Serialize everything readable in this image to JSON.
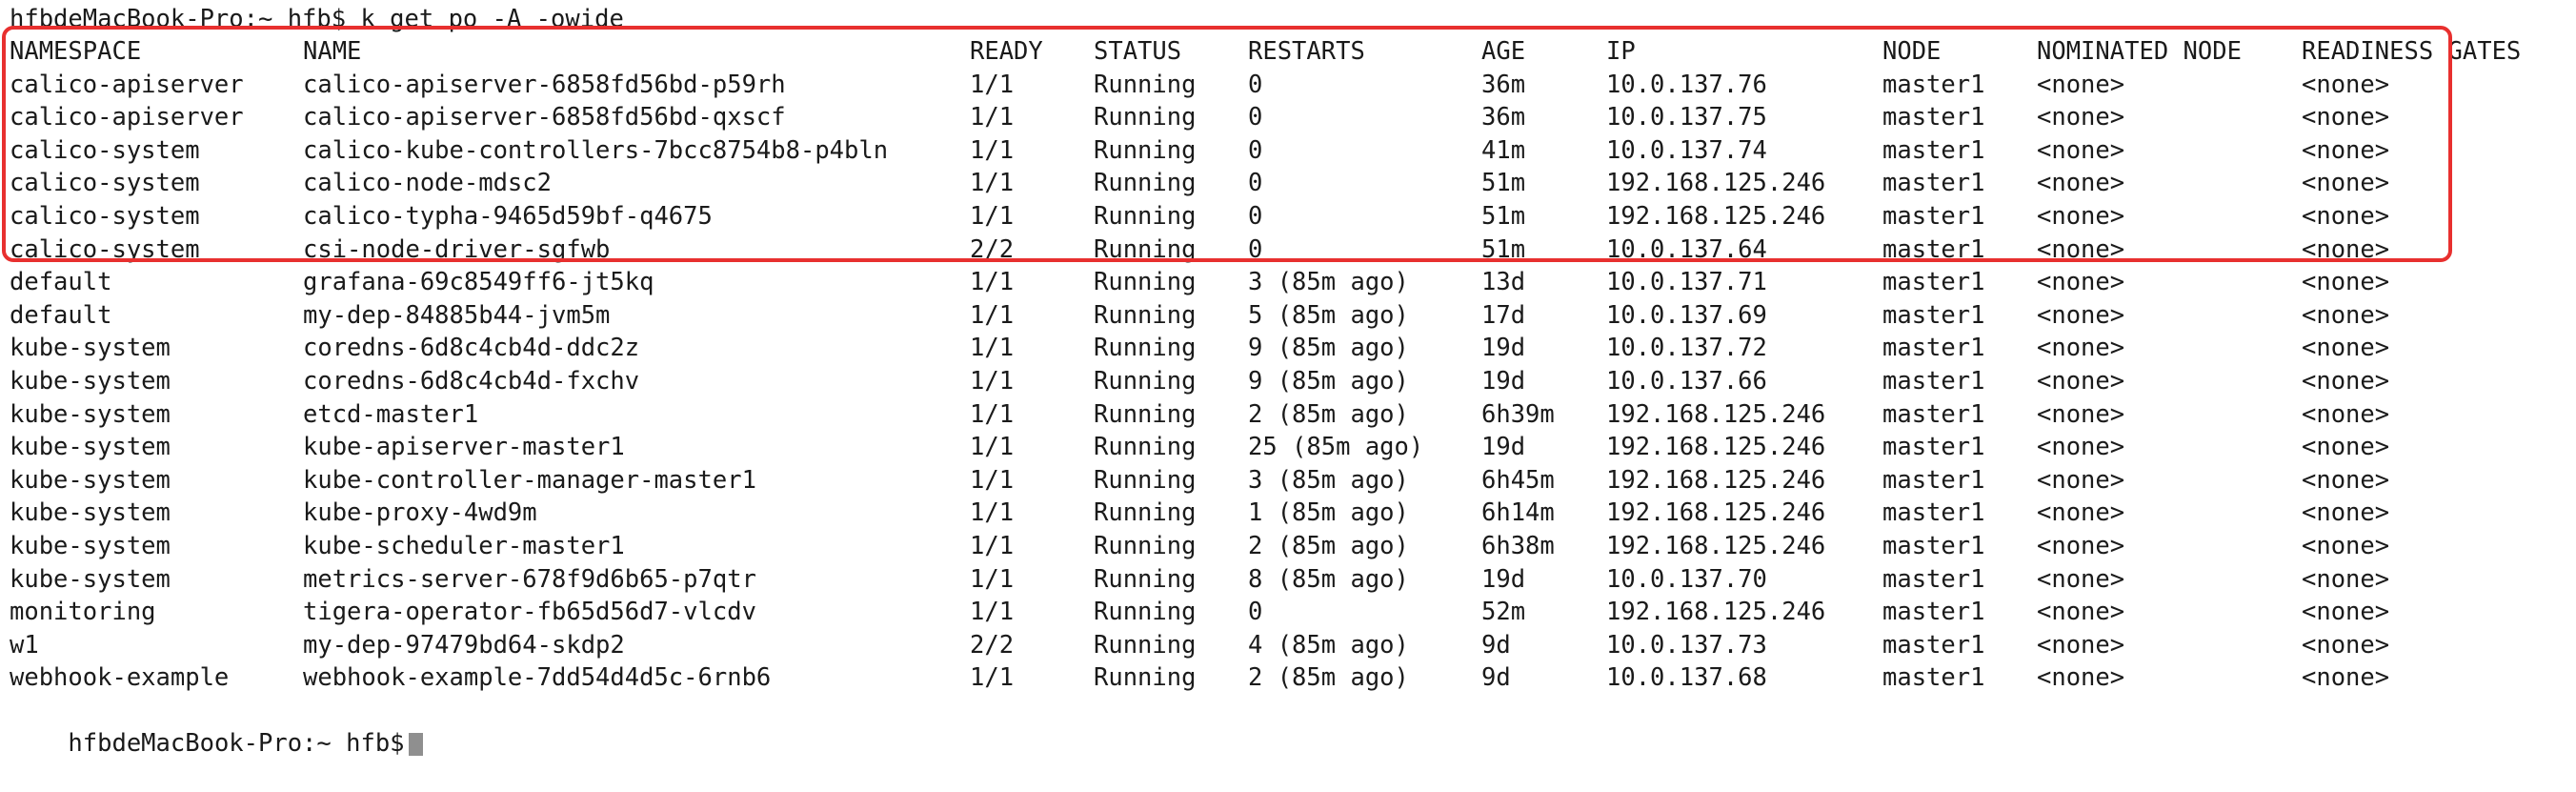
{
  "terminal": {
    "command_line": "hfbdeMacBook-Pro:~ hfb$ k get po -A -owide",
    "bottom_prompt": "hfbdeMacBook-Pro:~ hfb$",
    "highlight_color": "#e8302f",
    "headers": [
      "NAMESPACE",
      "NAME",
      "READY",
      "STATUS",
      "RESTARTS",
      "AGE",
      "IP",
      "NODE",
      "NOMINATED NODE",
      "READINESS GATES"
    ],
    "rows": [
      [
        "calico-apiserver",
        "calico-apiserver-6858fd56bd-p59rh",
        "1/1",
        "Running",
        "0",
        "36m",
        "10.0.137.76",
        "master1",
        "<none>",
        "<none>"
      ],
      [
        "calico-apiserver",
        "calico-apiserver-6858fd56bd-qxscf",
        "1/1",
        "Running",
        "0",
        "36m",
        "10.0.137.75",
        "master1",
        "<none>",
        "<none>"
      ],
      [
        "calico-system",
        "calico-kube-controllers-7bcc8754b8-p4bln",
        "1/1",
        "Running",
        "0",
        "41m",
        "10.0.137.74",
        "master1",
        "<none>",
        "<none>"
      ],
      [
        "calico-system",
        "calico-node-mdsc2",
        "1/1",
        "Running",
        "0",
        "51m",
        "192.168.125.246",
        "master1",
        "<none>",
        "<none>"
      ],
      [
        "calico-system",
        "calico-typha-9465d59bf-q4675",
        "1/1",
        "Running",
        "0",
        "51m",
        "192.168.125.246",
        "master1",
        "<none>",
        "<none>"
      ],
      [
        "calico-system",
        "csi-node-driver-sgfwb",
        "2/2",
        "Running",
        "0",
        "51m",
        "10.0.137.64",
        "master1",
        "<none>",
        "<none>"
      ],
      [
        "default",
        "grafana-69c8549ff6-jt5kq",
        "1/1",
        "Running",
        "3 (85m ago)",
        "13d",
        "10.0.137.71",
        "master1",
        "<none>",
        "<none>"
      ],
      [
        "default",
        "my-dep-84885b44-jvm5m",
        "1/1",
        "Running",
        "5 (85m ago)",
        "17d",
        "10.0.137.69",
        "master1",
        "<none>",
        "<none>"
      ],
      [
        "kube-system",
        "coredns-6d8c4cb4d-ddc2z",
        "1/1",
        "Running",
        "9 (85m ago)",
        "19d",
        "10.0.137.72",
        "master1",
        "<none>",
        "<none>"
      ],
      [
        "kube-system",
        "coredns-6d8c4cb4d-fxchv",
        "1/1",
        "Running",
        "9 (85m ago)",
        "19d",
        "10.0.137.66",
        "master1",
        "<none>",
        "<none>"
      ],
      [
        "kube-system",
        "etcd-master1",
        "1/1",
        "Running",
        "2 (85m ago)",
        "6h39m",
        "192.168.125.246",
        "master1",
        "<none>",
        "<none>"
      ],
      [
        "kube-system",
        "kube-apiserver-master1",
        "1/1",
        "Running",
        "25 (85m ago)",
        "19d",
        "192.168.125.246",
        "master1",
        "<none>",
        "<none>"
      ],
      [
        "kube-system",
        "kube-controller-manager-master1",
        "1/1",
        "Running",
        "3 (85m ago)",
        "6h45m",
        "192.168.125.246",
        "master1",
        "<none>",
        "<none>"
      ],
      [
        "kube-system",
        "kube-proxy-4wd9m",
        "1/1",
        "Running",
        "1 (85m ago)",
        "6h14m",
        "192.168.125.246",
        "master1",
        "<none>",
        "<none>"
      ],
      [
        "kube-system",
        "kube-scheduler-master1",
        "1/1",
        "Running",
        "2 (85m ago)",
        "6h38m",
        "192.168.125.246",
        "master1",
        "<none>",
        "<none>"
      ],
      [
        "kube-system",
        "metrics-server-678f9d6b65-p7qtr",
        "1/1",
        "Running",
        "8 (85m ago)",
        "19d",
        "10.0.137.70",
        "master1",
        "<none>",
        "<none>"
      ],
      [
        "monitoring",
        "tigera-operator-fb65d56d7-vlcdv",
        "1/1",
        "Running",
        "0",
        "52m",
        "192.168.125.246",
        "master1",
        "<none>",
        "<none>"
      ],
      [
        "w1",
        "my-dep-97479bd64-skdp2",
        "2/2",
        "Running",
        "4 (85m ago)",
        "9d",
        "10.0.137.73",
        "master1",
        "<none>",
        "<none>"
      ],
      [
        "webhook-example",
        "webhook-example-7dd54d4d5c-6rnb6",
        "1/1",
        "Running",
        "2 (85m ago)",
        "9d",
        "10.0.137.68",
        "master1",
        "<none>",
        "<none>"
      ]
    ]
  }
}
